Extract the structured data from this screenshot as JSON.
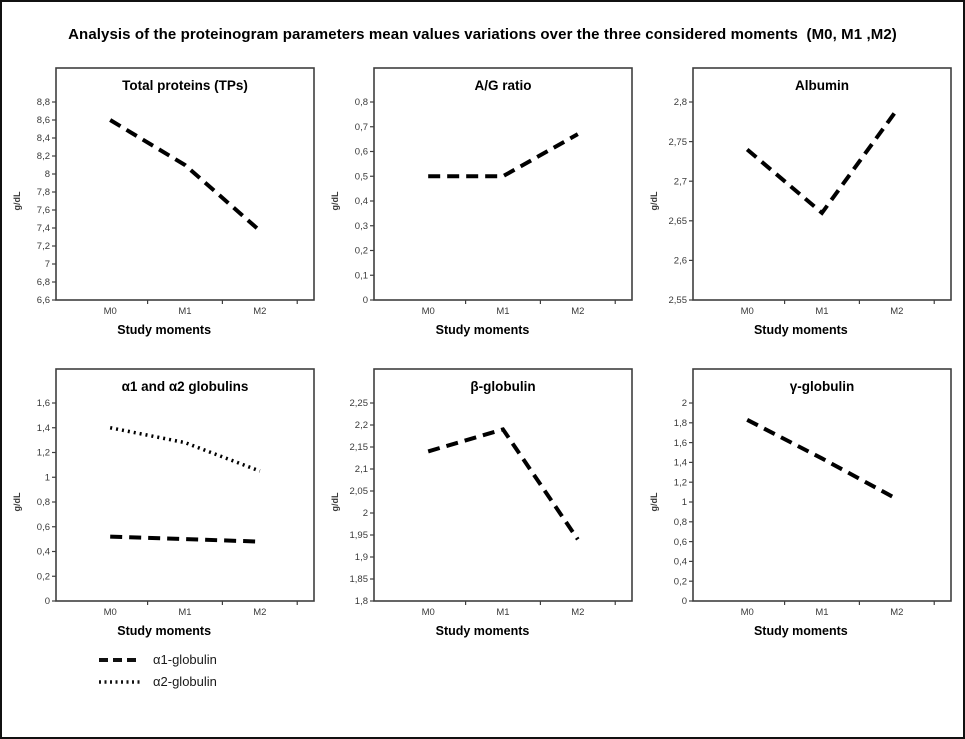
{
  "title": "Analysis of the proteinogram parameters mean values variations over the three considered moments  (M0, M1 ,M2)",
  "legend": [
    {
      "label": "α1-globulin",
      "style": "dashed"
    },
    {
      "label": "α2-globulin",
      "style": "dotted"
    }
  ],
  "chart_data": [
    {
      "type": "line",
      "title": "Total proteins (TPs)",
      "xlabel": "Study moments",
      "ylabel": "g/dL",
      "categories": [
        "M0",
        "M1",
        "M2"
      ],
      "ylim": [
        6.6,
        8.8
      ],
      "yticks": [
        "6,6",
        "6,8",
        "7",
        "7,2",
        "7,4",
        "7,6",
        "7,8",
        "8",
        "8,2",
        "8,4",
        "8,6",
        "8,8"
      ],
      "series": [
        {
          "name": "Total proteins",
          "style": "dashed",
          "values": [
            8.6,
            8.1,
            7.37
          ]
        }
      ]
    },
    {
      "type": "line",
      "title": "A/G ratio",
      "xlabel": "Study moments",
      "ylabel": "g/dL",
      "categories": [
        "M0",
        "M1",
        "M2"
      ],
      "ylim": [
        0,
        0.8
      ],
      "yticks": [
        "0",
        "0,1",
        "0,2",
        "0,3",
        "0,4",
        "0,5",
        "0,6",
        "0,7",
        "0,8"
      ],
      "series": [
        {
          "name": "A/G ratio",
          "style": "dashed",
          "values": [
            0.5,
            0.5,
            0.67
          ]
        }
      ]
    },
    {
      "type": "line",
      "title": "Albumin",
      "xlabel": "Study moments",
      "ylabel": "g/dL",
      "categories": [
        "M0",
        "M1",
        "M2"
      ],
      "ylim": [
        2.55,
        2.8
      ],
      "yticks": [
        "2,55",
        "2,6",
        "2,65",
        "2,7",
        "2,75",
        "2,8"
      ],
      "series": [
        {
          "name": "Albumin",
          "style": "dashed",
          "values": [
            2.74,
            2.66,
            2.79
          ]
        }
      ]
    },
    {
      "type": "line",
      "title": "α1  and α2 globulins",
      "xlabel": "Study moments",
      "ylabel": "g/dL",
      "categories": [
        "M0",
        "M1",
        "M2"
      ],
      "ylim": [
        0,
        1.6
      ],
      "yticks": [
        "0",
        "0,2",
        "0,4",
        "0,6",
        "0,8",
        "1",
        "1,2",
        "1,4",
        "1,6"
      ],
      "series": [
        {
          "name": "α1-globulin",
          "style": "dashed",
          "values": [
            0.52,
            0.5,
            0.48
          ]
        },
        {
          "name": "α2-globulin",
          "style": "dotted",
          "values": [
            1.4,
            1.28,
            1.05
          ]
        }
      ]
    },
    {
      "type": "line",
      "title": "β-globulin",
      "xlabel": "Study moments",
      "ylabel": "g/dL",
      "categories": [
        "M0",
        "M1",
        "M2"
      ],
      "ylim": [
        1.8,
        2.25
      ],
      "yticks": [
        "1,8",
        "1,85",
        "1,9",
        "1,95",
        "2",
        "2,05",
        "2,1",
        "2,15",
        "2,2",
        "2,25"
      ],
      "series": [
        {
          "name": "β-globulin",
          "style": "dashed",
          "values": [
            2.14,
            2.19,
            1.94
          ]
        }
      ]
    },
    {
      "type": "line",
      "title": "γ-globulin",
      "xlabel": "Study moments",
      "ylabel": "g/dL",
      "categories": [
        "M0",
        "M1",
        "M2"
      ],
      "ylim": [
        0,
        2
      ],
      "yticks": [
        "0",
        "0,2",
        "0,4",
        "0,6",
        "0,8",
        "1",
        "1,2",
        "1,4",
        "1,6",
        "1,8",
        "2"
      ],
      "series": [
        {
          "name": "γ-globulin",
          "style": "dashed",
          "values": [
            1.83,
            1.44,
            1.03
          ]
        }
      ]
    }
  ]
}
